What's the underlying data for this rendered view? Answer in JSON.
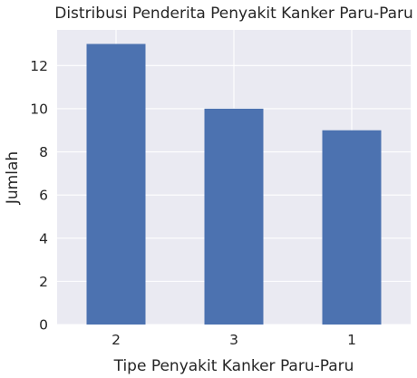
{
  "chart_data": {
    "type": "bar",
    "title": "Distribusi Penderita Penyakit Kanker Paru-Paru",
    "xlabel": "Tipe Penyakit Kanker Paru-Paru",
    "ylabel": "Jumlah",
    "categories": [
      "2",
      "3",
      "1"
    ],
    "values": [
      13,
      10,
      9
    ],
    "ylim": [
      0,
      13.65
    ],
    "yticks": [
      0,
      2,
      4,
      6,
      8,
      10,
      12
    ],
    "grid": true,
    "legend": "none",
    "colors": {
      "bar": "#4c72b0",
      "plot_background": "#eaeaf2",
      "grid": "#ffffff",
      "text": "#262626"
    }
  }
}
